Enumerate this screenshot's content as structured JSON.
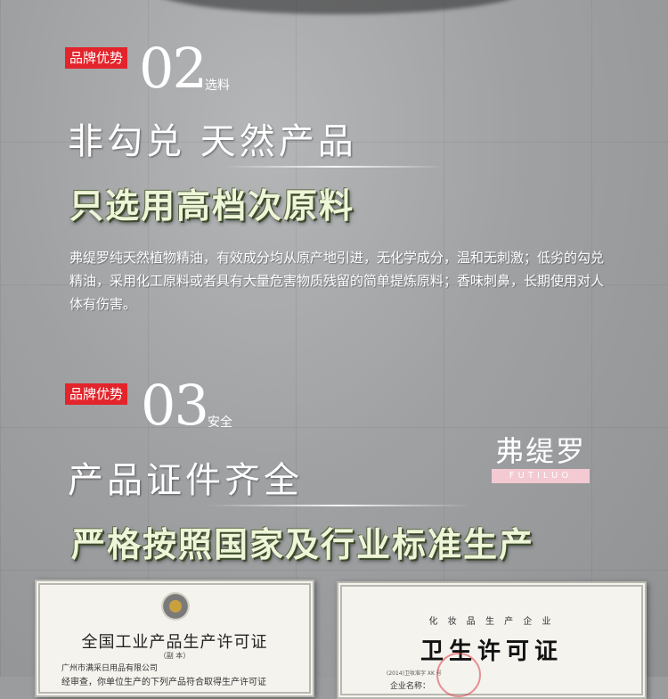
{
  "section2": {
    "badge": "品牌优势",
    "number": "02",
    "number_label": "选料",
    "title": "非勾兑 天然产品",
    "headline": "只选用高档次原料",
    "paragraph": "弗缇罗纯天然植物精油，有效成分均从原产地引进，无化学成分，温和无刺激；低劣的勾兑精油，采用化工原料或者具有大量危害物质残留的简单提炼原料；香味刺鼻，长期使用对人体有伤害。"
  },
  "section3": {
    "badge": "品牌优势",
    "number": "03",
    "number_label": "安全",
    "title": "产品证件齐全",
    "headline": "严格按照国家及行业标准生产",
    "logo": {
      "cn": "弗缇罗",
      "en": "FUTILUO"
    }
  },
  "certificates": [
    {
      "title": "全国工业产品生产许可证",
      "subtitle": "（副  本）",
      "company": "广州市满采日用品有限公司",
      "line2": "经审查，你单位生产的下列产品符合取得生产许可证"
    },
    {
      "top": "化 妆 品 生 产 企 业",
      "title": "卫生许可证",
      "number_line": "(2014)卫妆准字  XK  号",
      "line2": "企业名称："
    }
  ],
  "colors": {
    "badge": "#e3242b",
    "headline": "#eef5d8",
    "logo_band": "#f3c9d2"
  }
}
